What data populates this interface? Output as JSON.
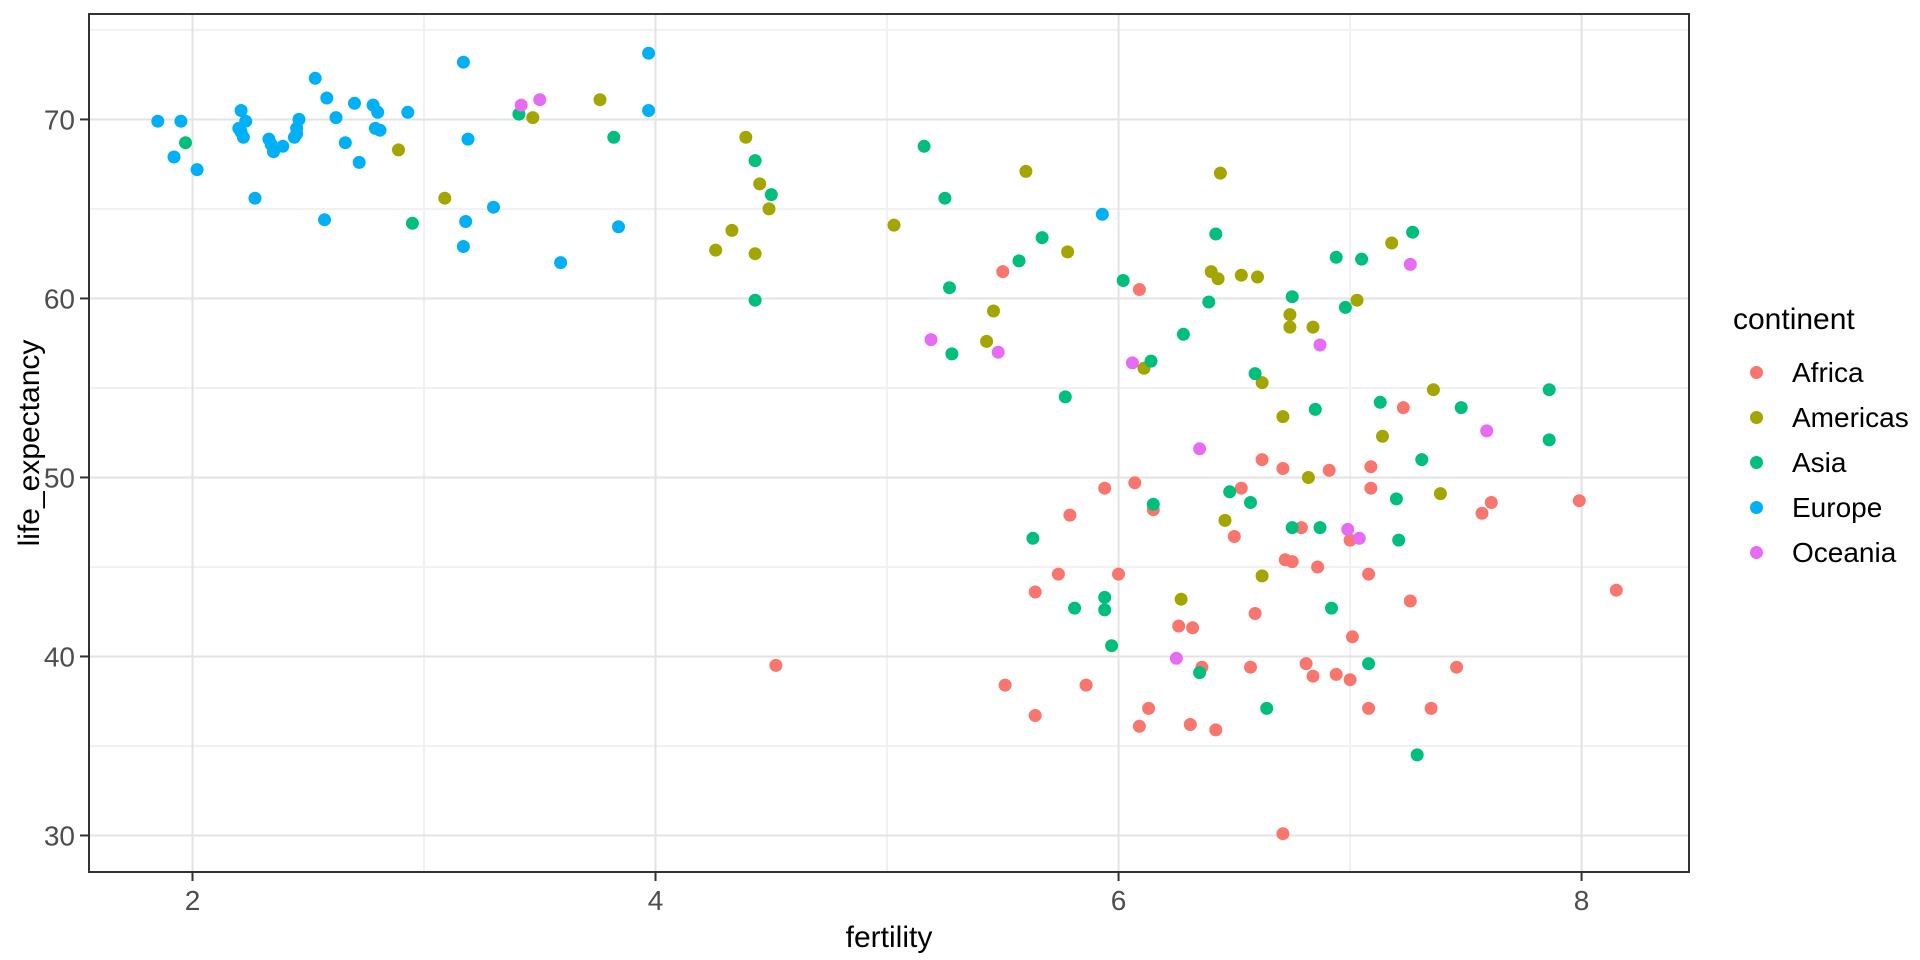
{
  "chart_data": {
    "type": "scatter",
    "title": "",
    "xlabel": "fertility",
    "ylabel": "life_expectancy",
    "x_domain": [
      1.553,
      8.464
    ],
    "y_domain": [
      27.96,
      75.89
    ],
    "x_major_ticks": [
      2,
      4,
      6,
      8
    ],
    "x_minor_gridlines": [
      3,
      5,
      7
    ],
    "y_major_ticks": [
      30,
      40,
      50,
      60,
      70
    ],
    "y_minor_gridlines": [
      35,
      45,
      55,
      65,
      75
    ],
    "grid": "on",
    "legend": {
      "title": "continent",
      "position": "right"
    },
    "series": [
      {
        "name": "Africa",
        "color": "#F8766D",
        "points": [
          [
            4.52,
            39.5
          ],
          [
            5.5,
            61.5
          ],
          [
            6.09,
            60.5
          ],
          [
            5.94,
            49.4
          ],
          [
            6.07,
            49.7
          ],
          [
            5.79,
            47.9
          ],
          [
            6.15,
            48.2
          ],
          [
            5.74,
            44.6
          ],
          [
            6.0,
            44.6
          ],
          [
            5.64,
            43.6
          ],
          [
            6.26,
            41.7
          ],
          [
            6.32,
            41.6
          ],
          [
            6.59,
            42.4
          ],
          [
            6.36,
            39.4
          ],
          [
            6.57,
            39.4
          ],
          [
            5.51,
            38.4
          ],
          [
            5.86,
            38.4
          ],
          [
            5.64,
            36.7
          ],
          [
            6.13,
            37.1
          ],
          [
            6.09,
            36.1
          ],
          [
            6.31,
            36.2
          ],
          [
            6.42,
            35.9
          ],
          [
            6.62,
            51.0
          ],
          [
            6.71,
            50.5
          ],
          [
            6.91,
            50.4
          ],
          [
            7.09,
            50.6
          ],
          [
            7.09,
            49.4
          ],
          [
            6.53,
            49.4
          ],
          [
            7.23,
            53.9
          ],
          [
            7.61,
            48.6
          ],
          [
            7.57,
            48.0
          ],
          [
            6.5,
            46.7
          ],
          [
            6.79,
            47.2
          ],
          [
            7.0,
            46.5
          ],
          [
            6.72,
            45.4
          ],
          [
            6.75,
            45.3
          ],
          [
            6.86,
            45.0
          ],
          [
            7.08,
            44.6
          ],
          [
            7.26,
            43.1
          ],
          [
            7.01,
            41.1
          ],
          [
            8.15,
            43.7
          ],
          [
            6.81,
            39.6
          ],
          [
            6.84,
            38.9
          ],
          [
            6.94,
            39.0
          ],
          [
            7.0,
            38.7
          ],
          [
            7.46,
            39.4
          ],
          [
            7.08,
            37.1
          ],
          [
            7.35,
            37.1
          ],
          [
            6.71,
            30.1
          ],
          [
            7.99,
            48.7
          ]
        ]
      },
      {
        "name": "Americas",
        "color": "#A3A500",
        "points": [
          [
            2.89,
            68.3
          ],
          [
            3.09,
            65.6
          ],
          [
            3.47,
            70.1
          ],
          [
            3.76,
            71.1
          ],
          [
            4.39,
            69.0
          ],
          [
            4.45,
            66.4
          ],
          [
            4.49,
            65.0
          ],
          [
            4.33,
            63.8
          ],
          [
            4.26,
            62.7
          ],
          [
            4.43,
            62.5
          ],
          [
            5.6,
            67.1
          ],
          [
            5.03,
            64.1
          ],
          [
            5.78,
            62.6
          ],
          [
            5.46,
            59.3
          ],
          [
            5.43,
            57.6
          ],
          [
            6.44,
            67.0
          ],
          [
            6.4,
            61.5
          ],
          [
            6.43,
            61.1
          ],
          [
            6.53,
            61.3
          ],
          [
            6.6,
            61.2
          ],
          [
            7.03,
            59.9
          ],
          [
            6.74,
            59.1
          ],
          [
            6.74,
            58.4
          ],
          [
            6.84,
            58.4
          ],
          [
            6.11,
            56.1
          ],
          [
            7.18,
            63.1
          ],
          [
            6.62,
            55.3
          ],
          [
            7.36,
            54.9
          ],
          [
            6.71,
            53.4
          ],
          [
            7.14,
            52.3
          ],
          [
            6.82,
            50.0
          ],
          [
            7.39,
            49.1
          ],
          [
            6.46,
            47.6
          ],
          [
            6.27,
            43.2
          ],
          [
            6.62,
            44.5
          ]
        ]
      },
      {
        "name": "Asia",
        "color": "#00BF7D",
        "points": [
          [
            1.97,
            68.7
          ],
          [
            2.95,
            64.2
          ],
          [
            3.41,
            70.3
          ],
          [
            3.82,
            69.0
          ],
          [
            4.43,
            67.7
          ],
          [
            4.5,
            65.8
          ],
          [
            4.43,
            59.9
          ],
          [
            5.16,
            68.5
          ],
          [
            5.25,
            65.6
          ],
          [
            5.67,
            63.4
          ],
          [
            5.57,
            62.1
          ],
          [
            5.27,
            60.6
          ],
          [
            5.28,
            56.9
          ],
          [
            5.77,
            54.5
          ],
          [
            6.02,
            61.0
          ],
          [
            6.42,
            63.6
          ],
          [
            7.27,
            63.7
          ],
          [
            6.94,
            62.3
          ],
          [
            7.05,
            62.2
          ],
          [
            6.75,
            60.1
          ],
          [
            6.39,
            59.8
          ],
          [
            6.98,
            59.5
          ],
          [
            6.28,
            58.0
          ],
          [
            6.14,
            56.5
          ],
          [
            6.59,
            55.8
          ],
          [
            7.86,
            54.9
          ],
          [
            7.13,
            54.2
          ],
          [
            7.48,
            53.9
          ],
          [
            6.85,
            53.8
          ],
          [
            7.86,
            52.1
          ],
          [
            7.31,
            51.0
          ],
          [
            6.48,
            49.2
          ],
          [
            6.57,
            48.6
          ],
          [
            7.2,
            48.8
          ],
          [
            6.15,
            48.5
          ],
          [
            5.63,
            46.6
          ],
          [
            6.75,
            47.2
          ],
          [
            6.87,
            47.2
          ],
          [
            7.21,
            46.5
          ],
          [
            5.94,
            43.3
          ],
          [
            5.94,
            42.6
          ],
          [
            5.81,
            42.7
          ],
          [
            5.97,
            40.6
          ],
          [
            6.35,
            39.1
          ],
          [
            6.64,
            37.1
          ],
          [
            6.92,
            42.7
          ],
          [
            7.08,
            39.6
          ],
          [
            7.29,
            34.5
          ]
        ]
      },
      {
        "name": "Europe",
        "color": "#00B0F6",
        "points": [
          [
            1.85,
            69.9
          ],
          [
            1.95,
            69.9
          ],
          [
            1.92,
            67.9
          ],
          [
            2.02,
            67.2
          ],
          [
            2.21,
            70.5
          ],
          [
            2.23,
            69.9
          ],
          [
            2.2,
            69.5
          ],
          [
            2.21,
            69.3
          ],
          [
            2.22,
            69.0
          ],
          [
            2.27,
            65.6
          ],
          [
            2.33,
            68.9
          ],
          [
            2.34,
            68.6
          ],
          [
            2.35,
            68.2
          ],
          [
            2.39,
            68.5
          ],
          [
            2.46,
            70.0
          ],
          [
            2.45,
            69.5
          ],
          [
            2.45,
            69.2
          ],
          [
            2.44,
            69.0
          ],
          [
            2.53,
            72.3
          ],
          [
            2.58,
            71.2
          ],
          [
            2.62,
            70.1
          ],
          [
            2.7,
            70.9
          ],
          [
            2.66,
            68.7
          ],
          [
            2.72,
            67.6
          ],
          [
            2.78,
            70.8
          ],
          [
            2.8,
            70.4
          ],
          [
            2.79,
            69.5
          ],
          [
            2.81,
            69.4
          ],
          [
            2.93,
            70.4
          ],
          [
            2.57,
            64.4
          ],
          [
            3.17,
            73.2
          ],
          [
            3.19,
            68.9
          ],
          [
            3.3,
            65.1
          ],
          [
            3.18,
            64.3
          ],
          [
            3.17,
            62.9
          ],
          [
            3.59,
            62.0
          ],
          [
            3.84,
            64.0
          ],
          [
            3.97,
            73.7
          ],
          [
            3.97,
            70.5
          ],
          [
            5.93,
            64.7
          ]
        ]
      },
      {
        "name": "Oceania",
        "color": "#E76BF3",
        "points": [
          [
            3.42,
            70.8
          ],
          [
            3.5,
            71.1
          ],
          [
            5.19,
            57.7
          ],
          [
            5.48,
            57.0
          ],
          [
            6.06,
            56.4
          ],
          [
            6.87,
            57.4
          ],
          [
            7.26,
            61.9
          ],
          [
            6.35,
            51.6
          ],
          [
            7.59,
            52.6
          ],
          [
            6.99,
            47.1
          ],
          [
            7.04,
            46.6
          ],
          [
            6.25,
            39.9
          ]
        ]
      }
    ]
  },
  "style_colors": {
    "background": "#FFFFFF",
    "panel_border": "#333333",
    "grid_major": "#E3E3E3",
    "grid_minor": "#F1F1F1",
    "tick_mark": "#333333",
    "tick_label": "#4D4D4D",
    "text": "#000000"
  }
}
